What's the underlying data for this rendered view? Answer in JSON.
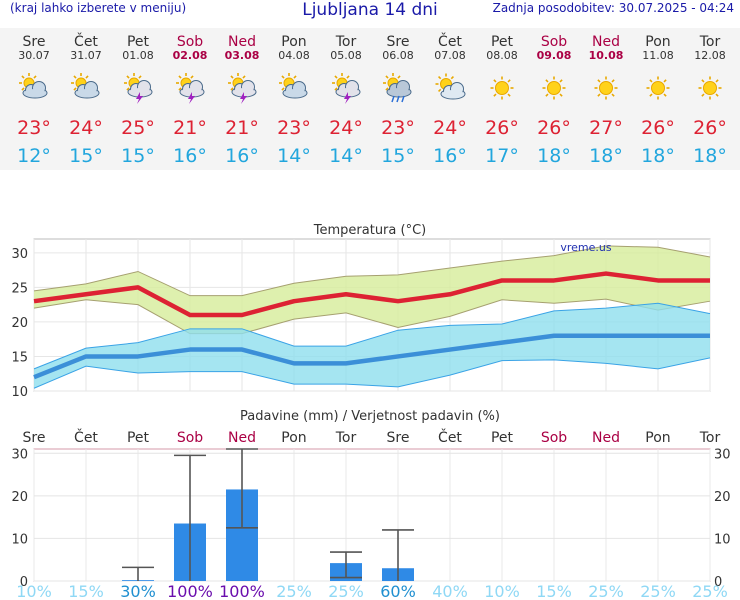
{
  "header": {
    "left": "(kraj lahko izberete v meniju)",
    "title": "Ljubljana 14 dni",
    "updated": "Zadnja posodobitev: 30.07.2025 - 04:24"
  },
  "colors": {
    "weekday": "#333333",
    "weekend": "#aa0044",
    "max_temp": "#dd2233",
    "min_temp": "#22a6dd",
    "rain_bar": "#2f8ae6"
  },
  "days": [
    {
      "name": "Sre",
      "date": "30.07",
      "weekend": false,
      "icon": "partly-cloudy-icon",
      "tmax": "23°",
      "tmin": "12°"
    },
    {
      "name": "Čet",
      "date": "31.07",
      "weekend": false,
      "icon": "partly-cloudy-icon",
      "tmax": "24°",
      "tmin": "15°"
    },
    {
      "name": "Pet",
      "date": "01.08",
      "weekend": false,
      "icon": "thunderstorm-sun-icon",
      "tmax": "25°",
      "tmin": "15°"
    },
    {
      "name": "Sob",
      "date": "02.08",
      "weekend": true,
      "icon": "thunderstorm-sun-icon",
      "tmax": "21°",
      "tmin": "16°"
    },
    {
      "name": "Ned",
      "date": "03.08",
      "weekend": true,
      "icon": "thunderstorm-sun-icon",
      "tmax": "21°",
      "tmin": "16°"
    },
    {
      "name": "Pon",
      "date": "04.08",
      "weekend": false,
      "icon": "partly-cloudy-icon",
      "tmax": "23°",
      "tmin": "14°"
    },
    {
      "name": "Tor",
      "date": "05.08",
      "weekend": false,
      "icon": "thunderstorm-sun-icon",
      "tmax": "24°",
      "tmin": "14°"
    },
    {
      "name": "Sre",
      "date": "06.08",
      "weekend": false,
      "icon": "rain-shower-icon",
      "tmax": "23°",
      "tmin": "15°"
    },
    {
      "name": "Čet",
      "date": "07.08",
      "weekend": false,
      "icon": "sun-cloud-icon",
      "tmax": "24°",
      "tmin": "16°"
    },
    {
      "name": "Pet",
      "date": "08.08",
      "weekend": false,
      "icon": "sun-icon",
      "tmax": "26°",
      "tmin": "17°"
    },
    {
      "name": "Sob",
      "date": "09.08",
      "weekend": true,
      "icon": "sun-icon",
      "tmax": "26°",
      "tmin": "18°"
    },
    {
      "name": "Ned",
      "date": "10.08",
      "weekend": true,
      "icon": "sun-icon",
      "tmax": "27°",
      "tmin": "18°"
    },
    {
      "name": "Pon",
      "date": "11.08",
      "weekend": false,
      "icon": "sun-icon",
      "tmax": "26°",
      "tmin": "18°"
    },
    {
      "name": "Tor",
      "date": "12.08",
      "weekend": false,
      "icon": "sun-icon",
      "tmax": "26°",
      "tmin": "18°"
    }
  ],
  "chart_data": [
    {
      "type": "area",
      "title": "Temperatura (°C)",
      "watermark": "vreme.us",
      "grid": true,
      "ylim": [
        10,
        32
      ],
      "yticks": [
        10,
        15,
        20,
        25,
        30
      ],
      "series": [
        {
          "values": [
            23,
            24,
            25,
            21,
            21,
            23,
            24,
            23,
            24,
            26,
            26,
            27,
            26,
            26
          ]
        },
        {
          "values": [
            12,
            15,
            15,
            16,
            16,
            14,
            14,
            15,
            16,
            17,
            18,
            18,
            18,
            18
          ]
        }
      ],
      "bands": [
        {
          "upper": [
            24.5,
            25.5,
            27.3,
            23.8,
            23.8,
            25.6,
            26.6,
            26.8,
            27.8,
            28.8,
            29.6,
            31,
            30.8,
            29.4
          ],
          "lower": [
            22,
            23.2,
            22.5,
            18.3,
            18.3,
            20.4,
            21.3,
            19.2,
            20.8,
            23.2,
            22.7,
            23.3,
            21.7,
            23
          ]
        },
        {
          "upper": [
            13.2,
            16.2,
            17,
            19,
            19,
            16.5,
            16.5,
            18.8,
            19.5,
            19.7,
            21.6,
            22,
            22.7,
            21.2
          ],
          "lower": [
            10.4,
            13.6,
            12.6,
            12.8,
            12.8,
            11,
            11,
            10.6,
            12.3,
            14.4,
            14.5,
            14,
            13.2,
            14.8
          ]
        }
      ]
    },
    {
      "type": "bar",
      "title": "Padavine (mm) / Verjetnost padavin (%)",
      "grid": true,
      "categories": [
        "Sre",
        "Čet",
        "Pet",
        "Sob",
        "Ned",
        "Pon",
        "Tor",
        "Sre",
        "Čet",
        "Pet",
        "Sob",
        "Ned",
        "Pon",
        "Tor"
      ],
      "values": [
        0,
        0,
        0.2,
        13.5,
        21.5,
        0,
        4.2,
        3,
        0,
        0,
        0,
        0,
        0,
        0
      ],
      "error_low": [
        0,
        0,
        0,
        0,
        12.5,
        0,
        0.8,
        0,
        0,
        0,
        0,
        0,
        0,
        0
      ],
      "error_high": [
        0,
        0,
        3.2,
        29.5,
        31,
        0,
        6.8,
        12,
        0,
        0,
        0,
        0,
        0,
        0
      ],
      "ylim": [
        0,
        31
      ],
      "yticks": [
        0,
        10,
        20,
        30
      ],
      "probability": [
        "10%",
        "15%",
        "30%",
        "100%",
        "100%",
        "25%",
        "25%",
        "60%",
        "40%",
        "10%",
        "15%",
        "25%",
        "25%",
        "25%"
      ],
      "probability_levels": [
        "low",
        "low",
        "mid",
        "high",
        "high",
        "low",
        "low",
        "mid",
        "low",
        "low",
        "low",
        "low",
        "low",
        "low"
      ],
      "probability_colors": {
        "low": "#8fd8f5",
        "mid": "#1f8fd0",
        "high": "#6a0dad"
      }
    }
  ]
}
